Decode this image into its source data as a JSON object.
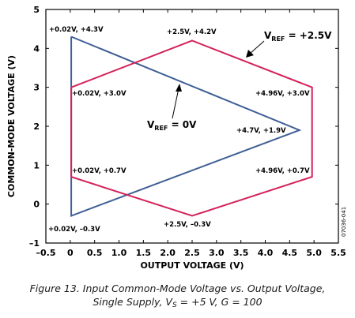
{
  "chart_data": {
    "type": "line",
    "xlabel": "OUTPUT VOLTAGE (V)",
    "ylabel": "COMMON-MODE VOLTAGE (V)",
    "xlim": [
      -0.5,
      5.5
    ],
    "ylim": [
      -1,
      5
    ],
    "x_ticks": [
      "–0.5",
      "0",
      "0.5",
      "1.0",
      "1.5",
      "2.0",
      "2.5",
      "3.0",
      "3.5",
      "4.0",
      "4.5",
      "5.0",
      "5.5"
    ],
    "y_ticks": [
      "5",
      "4",
      "3",
      "2",
      "1",
      "0",
      "–1"
    ],
    "grid": false,
    "series": [
      {
        "name_main": "V",
        "name_sub": "REF",
        "name_rest": " = 0V",
        "color": "#3f5f96",
        "points": [
          [
            0.02,
            4.3
          ],
          [
            4.7,
            1.9
          ],
          [
            0.02,
            -0.3
          ],
          [
            0.02,
            4.3
          ]
        ]
      },
      {
        "name_main": "V",
        "name_sub": "REF",
        "name_rest": " = +2.5V",
        "color": "#d4235a",
        "points": [
          [
            0.02,
            3.0
          ],
          [
            2.5,
            4.2
          ],
          [
            4.96,
            3.0
          ],
          [
            4.96,
            0.7
          ],
          [
            2.5,
            -0.3
          ],
          [
            0.02,
            0.7
          ],
          [
            0.02,
            3.0
          ]
        ]
      }
    ],
    "annotations": [
      {
        "text": "+0.02V, +4.3V"
      },
      {
        "text": "+2.5V, +4.2V"
      },
      {
        "text": "+0.02V, +3.0V"
      },
      {
        "text": "+4.96V, +3.0V"
      },
      {
        "text": "+4.7V, +1.9V"
      },
      {
        "text": "+0.02V, +0.7V"
      },
      {
        "text": "+4.96V, +0.7V"
      },
      {
        "text": "+2.5V, –0.3V"
      },
      {
        "text": "+0.02V, –0.3V"
      }
    ],
    "figure_id": "07036-041"
  },
  "caption": {
    "line1": "Figure 13. Input Common-Mode Voltage vs. Output Voltage,",
    "line2_a": "Single Supply, V",
    "line2_sub": "S",
    "line2_b": " = +5 V, G = 100"
  }
}
